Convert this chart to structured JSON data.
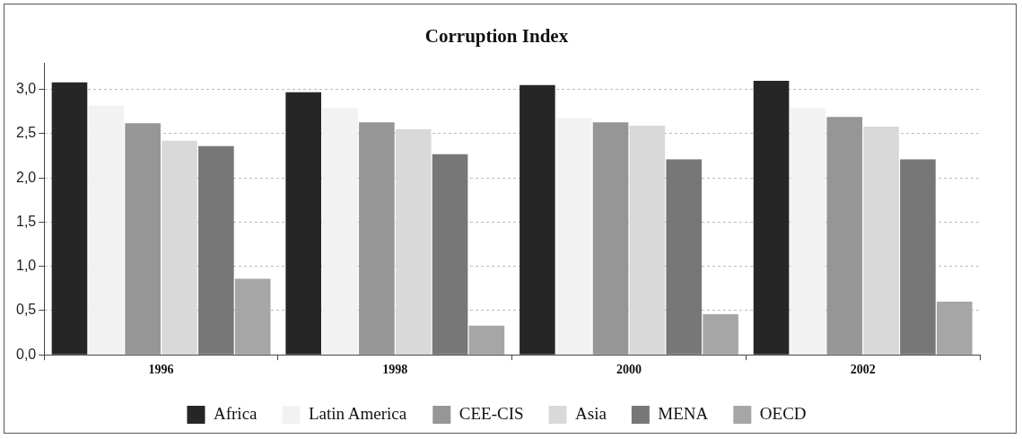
{
  "chart_data": {
    "type": "bar",
    "title": "Corruption Index",
    "categories": [
      "1996",
      "1998",
      "2000",
      "2002"
    ],
    "series": [
      {
        "name": "Africa",
        "color": "#262626",
        "values": [
          3.08,
          2.97,
          3.05,
          3.1
        ]
      },
      {
        "name": "Latin America",
        "color": "#f2f2f2",
        "values": [
          2.82,
          2.79,
          2.68,
          2.79
        ]
      },
      {
        "name": "CEE-CIS",
        "color": "#969696",
        "values": [
          2.62,
          2.63,
          2.63,
          2.69
        ]
      },
      {
        "name": "Asia",
        "color": "#d9d9d9",
        "values": [
          2.42,
          2.55,
          2.59,
          2.58
        ]
      },
      {
        "name": "MENA",
        "color": "#777777",
        "values": [
          2.36,
          2.27,
          2.21,
          2.21
        ]
      },
      {
        "name": "OECD",
        "color": "#a6a6a6",
        "values": [
          0.86,
          0.33,
          0.46,
          0.6
        ]
      }
    ],
    "ylim": [
      0,
      3.3
    ],
    "yticks": [
      {
        "value": 0,
        "label": "0,0"
      },
      {
        "value": 0.5,
        "label": "0,5"
      },
      {
        "value": 1,
        "label": "1,0"
      },
      {
        "value": 1.5,
        "label": "1,5"
      },
      {
        "value": 2,
        "label": "2,0"
      },
      {
        "value": 2.5,
        "label": "2,5"
      },
      {
        "value": 3,
        "label": "3,0"
      }
    ],
    "grid": "y",
    "legend": "bottom"
  }
}
